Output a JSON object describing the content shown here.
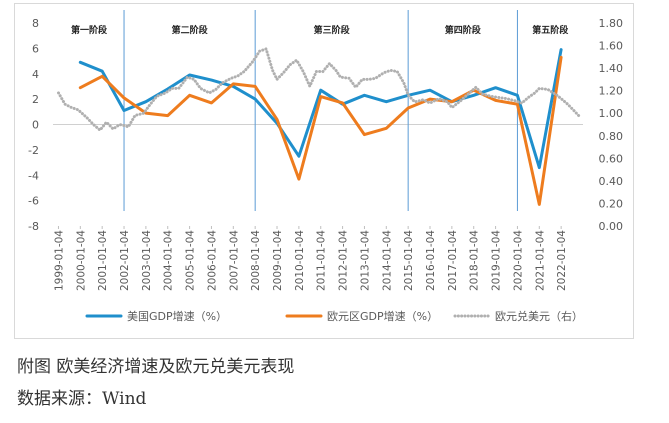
{
  "chart_data": {
    "type": "line",
    "title": "",
    "y_left": {
      "min": -8,
      "max": 8,
      "ticks": [
        -8,
        -6,
        -4,
        -2,
        0,
        2,
        4,
        6,
        8
      ]
    },
    "y_right": {
      "min": 0.0,
      "max": 1.8,
      "ticks": [
        "0.00",
        "0.20",
        "0.40",
        "0.60",
        "0.80",
        "1.00",
        "1.20",
        "1.40",
        "1.60",
        "1.80"
      ]
    },
    "x_ticks": [
      "1999-01-04",
      "2000-01-04",
      "2001-01-04",
      "2002-01-04",
      "2003-01-04",
      "2004-01-04",
      "2005-01-04",
      "2006-01-04",
      "2007-01-04",
      "2008-01-04",
      "2009-01-04",
      "2010-01-04",
      "2011-01-04",
      "2012-01-04",
      "2013-01-04",
      "2014-01-04",
      "2015-01-04",
      "2016-01-04",
      "2017-01-04",
      "2018-01-04",
      "2019-01-04",
      "2020-01-04",
      "2021-01-04",
      "2022-01-04"
    ],
    "stage_dividers": [
      2002.0,
      2008.0,
      2015.0,
      2020.0
    ],
    "stages": [
      {
        "label": "第一阶段",
        "x": 2000.4
      },
      {
        "label": "第二阶段",
        "x": 2005.0
      },
      {
        "label": "第三阶段",
        "x": 2011.5
      },
      {
        "label": "第四阶段",
        "x": 2017.5
      },
      {
        "label": "第五阶段",
        "x": 2021.5
      }
    ],
    "series": [
      {
        "name": "美国GDP增速（%）",
        "axis": "left",
        "color": "#1f8fcc",
        "style": "solid",
        "points": [
          [
            2000.0,
            4.9
          ],
          [
            2001.0,
            4.2
          ],
          [
            2002.0,
            1.1
          ],
          [
            2003.0,
            1.8
          ],
          [
            2004.0,
            2.8
          ],
          [
            2005.0,
            3.9
          ],
          [
            2006.0,
            3.5
          ],
          [
            2007.0,
            3.0
          ],
          [
            2008.0,
            2.0
          ],
          [
            2009.0,
            0.1
          ],
          [
            2010.0,
            -2.5
          ],
          [
            2011.0,
            2.7
          ],
          [
            2012.0,
            1.6
          ],
          [
            2013.0,
            2.3
          ],
          [
            2014.0,
            1.8
          ],
          [
            2015.0,
            2.3
          ],
          [
            2016.0,
            2.7
          ],
          [
            2017.0,
            1.8
          ],
          [
            2018.0,
            2.3
          ],
          [
            2019.0,
            2.9
          ],
          [
            2020.0,
            2.3
          ],
          [
            2021.0,
            -3.4
          ],
          [
            2022.0,
            5.9
          ]
        ]
      },
      {
        "name": "欧元区GDP增速（%）",
        "axis": "left",
        "color": "#ee7c1e",
        "style": "solid",
        "points": [
          [
            2000.0,
            2.9
          ],
          [
            2001.0,
            3.8
          ],
          [
            2002.0,
            2.1
          ],
          [
            2003.0,
            0.9
          ],
          [
            2004.0,
            0.7
          ],
          [
            2005.0,
            2.3
          ],
          [
            2006.0,
            1.7
          ],
          [
            2007.0,
            3.2
          ],
          [
            2008.0,
            3.0
          ],
          [
            2009.0,
            0.4
          ],
          [
            2010.0,
            -4.3
          ],
          [
            2011.0,
            2.2
          ],
          [
            2012.0,
            1.7
          ],
          [
            2013.0,
            -0.8
          ],
          [
            2014.0,
            -0.3
          ],
          [
            2015.0,
            1.3
          ],
          [
            2016.0,
            2.0
          ],
          [
            2017.0,
            1.8
          ],
          [
            2018.0,
            2.7
          ],
          [
            2019.0,
            1.9
          ],
          [
            2020.0,
            1.6
          ],
          [
            2021.0,
            -6.3
          ],
          [
            2022.0,
            5.3
          ]
        ]
      },
      {
        "name": "欧元兑美元（右）",
        "axis": "right",
        "color": "#b0b0b0",
        "style": "dotted",
        "points": [
          [
            1999.0,
            1.18
          ],
          [
            1999.3,
            1.08
          ],
          [
            1999.6,
            1.05
          ],
          [
            1999.9,
            1.03
          ],
          [
            2000.3,
            0.96
          ],
          [
            2000.6,
            0.9
          ],
          [
            2000.9,
            0.85
          ],
          [
            2001.2,
            0.92
          ],
          [
            2001.5,
            0.86
          ],
          [
            2001.8,
            0.9
          ],
          [
            2002.2,
            0.88
          ],
          [
            2002.5,
            0.98
          ],
          [
            2002.9,
            1.0
          ],
          [
            2003.2,
            1.08
          ],
          [
            2003.5,
            1.15
          ],
          [
            2003.9,
            1.18
          ],
          [
            2004.2,
            1.22
          ],
          [
            2004.5,
            1.22
          ],
          [
            2004.9,
            1.32
          ],
          [
            2005.2,
            1.3
          ],
          [
            2005.5,
            1.22
          ],
          [
            2005.9,
            1.18
          ],
          [
            2006.2,
            1.21
          ],
          [
            2006.5,
            1.27
          ],
          [
            2006.9,
            1.31
          ],
          [
            2007.2,
            1.33
          ],
          [
            2007.5,
            1.37
          ],
          [
            2007.9,
            1.46
          ],
          [
            2008.2,
            1.55
          ],
          [
            2008.5,
            1.57
          ],
          [
            2008.8,
            1.38
          ],
          [
            2009.0,
            1.3
          ],
          [
            2009.3,
            1.36
          ],
          [
            2009.6,
            1.43
          ],
          [
            2009.9,
            1.47
          ],
          [
            2010.2,
            1.37
          ],
          [
            2010.5,
            1.24
          ],
          [
            2010.8,
            1.37
          ],
          [
            2011.1,
            1.37
          ],
          [
            2011.4,
            1.44
          ],
          [
            2011.7,
            1.38
          ],
          [
            2011.9,
            1.32
          ],
          [
            2012.3,
            1.31
          ],
          [
            2012.6,
            1.23
          ],
          [
            2012.9,
            1.3
          ],
          [
            2013.2,
            1.3
          ],
          [
            2013.5,
            1.31
          ],
          [
            2013.9,
            1.36
          ],
          [
            2014.2,
            1.38
          ],
          [
            2014.5,
            1.37
          ],
          [
            2014.8,
            1.27
          ],
          [
            2015.0,
            1.16
          ],
          [
            2015.3,
            1.1
          ],
          [
            2015.7,
            1.12
          ],
          [
            2016.0,
            1.09
          ],
          [
            2016.4,
            1.13
          ],
          [
            2016.8,
            1.1
          ],
          [
            2017.0,
            1.05
          ],
          [
            2017.4,
            1.11
          ],
          [
            2017.8,
            1.18
          ],
          [
            2018.1,
            1.23
          ],
          [
            2018.4,
            1.17
          ],
          [
            2018.8,
            1.15
          ],
          [
            2019.1,
            1.14
          ],
          [
            2019.5,
            1.13
          ],
          [
            2019.9,
            1.11
          ],
          [
            2020.2,
            1.09
          ],
          [
            2020.5,
            1.14
          ],
          [
            2020.8,
            1.18
          ],
          [
            2021.0,
            1.22
          ],
          [
            2021.4,
            1.21
          ],
          [
            2021.8,
            1.16
          ],
          [
            2022.0,
            1.13
          ],
          [
            2022.3,
            1.08
          ],
          [
            2022.6,
            1.02
          ],
          [
            2022.8,
            0.98
          ]
        ]
      }
    ]
  },
  "caption": {
    "title": "附图 欧美经济增速及欧元兑美元表现",
    "source": "数据来源：Wind"
  }
}
